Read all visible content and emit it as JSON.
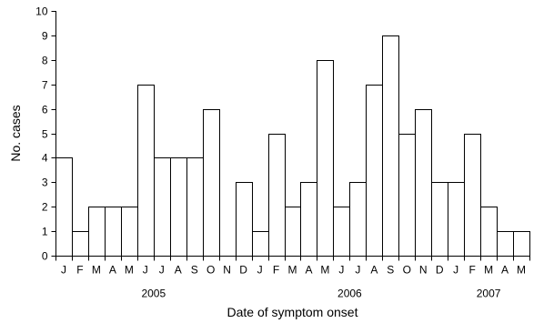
{
  "chart_data": {
    "type": "bar",
    "title": "",
    "xlabel": "Date of symptom onset",
    "ylabel": "No. cases",
    "ylim": [
      0,
      10
    ],
    "yticks": [
      0,
      1,
      2,
      3,
      4,
      5,
      6,
      7,
      8,
      9,
      10
    ],
    "grid": false,
    "bar_fill": "#ffffff",
    "bar_stroke": "#000000",
    "categories": [
      "J",
      "F",
      "M",
      "A",
      "M",
      "J",
      "J",
      "A",
      "S",
      "O",
      "N",
      "D",
      "J",
      "F",
      "M",
      "A",
      "M",
      "J",
      "J",
      "A",
      "S",
      "O",
      "N",
      "D",
      "J",
      "F",
      "M",
      "A",
      "M"
    ],
    "values": [
      4,
      1,
      2,
      2,
      2,
      7,
      4,
      4,
      4,
      6,
      0,
      3,
      1,
      5,
      2,
      3,
      8,
      2,
      3,
      7,
      9,
      5,
      6,
      3,
      3,
      5,
      2,
      1,
      1
    ],
    "year_labels": [
      {
        "label": "2005",
        "center_category_index": 5.5
      },
      {
        "label": "2006",
        "center_category_index": 17.5
      },
      {
        "label": "2007",
        "center_category_index": 26
      }
    ]
  }
}
